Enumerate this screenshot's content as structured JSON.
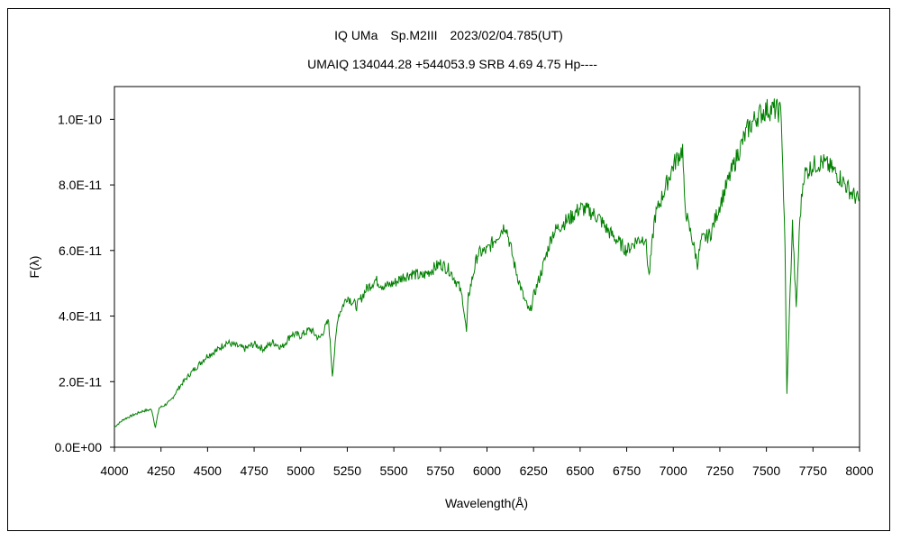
{
  "chart_data": {
    "type": "line",
    "title": "IQ UMa　Sp.M2III　2023/02/04.785(UT)",
    "subtitle": "UMAIQ 134044.28 +544053.9 SRB 4.69 4.75 Hp----",
    "xlabel": "Wavelength(Å)",
    "ylabel": "F(λ)",
    "xlim": [
      4000,
      8000
    ],
    "ylim": [
      0,
      1.1e-10
    ],
    "x_ticks": [
      4000,
      4250,
      4500,
      4750,
      5000,
      5250,
      5500,
      5750,
      6000,
      6250,
      6500,
      6750,
      7000,
      7250,
      7500,
      7750,
      8000
    ],
    "x_tick_labels": [
      "4000",
      "4250",
      "4500",
      "4750",
      "5000",
      "5250",
      "5500",
      "5750",
      "6000",
      "6250",
      "6500",
      "6750",
      "7000",
      "7250",
      "7500",
      "7750",
      "8000"
    ],
    "y_ticks": [
      0,
      2e-11,
      4e-11,
      6e-11,
      8e-11,
      1e-10
    ],
    "y_tick_labels": [
      "0.0E+00",
      "2.0E-11",
      "4.0E-11",
      "6.0E-11",
      "8.0E-11",
      "1.0E-10"
    ],
    "grid": false,
    "line_color": "#008000",
    "series": [
      {
        "x": [
          4000,
          4050,
          4100,
          4150,
          4200,
          4220,
          4240,
          4260,
          4300,
          4350,
          4400,
          4450,
          4500,
          4550,
          4600,
          4650,
          4700,
          4750,
          4800,
          4850,
          4900,
          4950,
          5000,
          5050,
          5100,
          5150,
          5170,
          5200,
          5250,
          5300,
          5350,
          5400,
          5450,
          5500,
          5550,
          5600,
          5650,
          5700,
          5750,
          5800,
          5850,
          5870,
          5890,
          5900,
          5950,
          6000,
          6050,
          6100,
          6150,
          6200,
          6230,
          6250,
          6300,
          6350,
          6400,
          6450,
          6500,
          6550,
          6600,
          6650,
          6700,
          6750,
          6800,
          6850,
          6870,
          6900,
          6950,
          7000,
          7050,
          7060,
          7080,
          7100,
          7130,
          7150,
          7200,
          7250,
          7300,
          7350,
          7400,
          7450,
          7500,
          7550,
          7580,
          7600,
          7610,
          7620,
          7640,
          7660,
          7680,
          7700,
          7750,
          7800,
          7850,
          7900,
          7950,
          8000
        ],
        "y": [
          6.2e-12,
          8.5e-12,
          9.8e-12,
          1.1e-11,
          1.15e-11,
          6e-12,
          1.2e-11,
          1.25e-11,
          1.4e-11,
          1.85e-11,
          2.2e-11,
          2.5e-11,
          2.8e-11,
          2.95e-11,
          3.2e-11,
          3.1e-11,
          3e-11,
          3.15e-11,
          3e-11,
          3.2e-11,
          3.05e-11,
          3.45e-11,
          3.4e-11,
          3.6e-11,
          3.3e-11,
          3.85e-11,
          2.2e-11,
          4e-11,
          4.6e-11,
          4.3e-11,
          4.8e-11,
          5.1e-11,
          4.9e-11,
          5e-11,
          5.2e-11,
          5.3e-11,
          5.2e-11,
          5.4e-11,
          5.6e-11,
          5.4e-11,
          4.9e-11,
          4.5e-11,
          3.5e-11,
          4.6e-11,
          5.9e-11,
          6e-11,
          6.4e-11,
          6.8e-11,
          5.5e-11,
          4.5e-11,
          4.1e-11,
          4.6e-11,
          5.5e-11,
          6.5e-11,
          6.8e-11,
          7e-11,
          7.3e-11,
          7.2e-11,
          7e-11,
          6.6e-11,
          6.3e-11,
          6e-11,
          6.3e-11,
          6.4e-11,
          5.2e-11,
          7e-11,
          7.8e-11,
          8.6e-11,
          9.1e-11,
          7.5e-11,
          6.8e-11,
          6.4e-11,
          5.6e-11,
          6.3e-11,
          6.5e-11,
          7.4e-11,
          8.2e-11,
          9e-11,
          9.7e-11,
          1.01e-10,
          1.03e-10,
          1.03e-10,
          1.02e-10,
          6e-11,
          1.6e-11,
          3.5e-11,
          6.8e-11,
          4.2e-11,
          7e-11,
          8.3e-11,
          8.6e-11,
          8.7e-11,
          8.5e-11,
          8.2e-11,
          7.8e-11,
          7.5e-11
        ]
      }
    ]
  }
}
